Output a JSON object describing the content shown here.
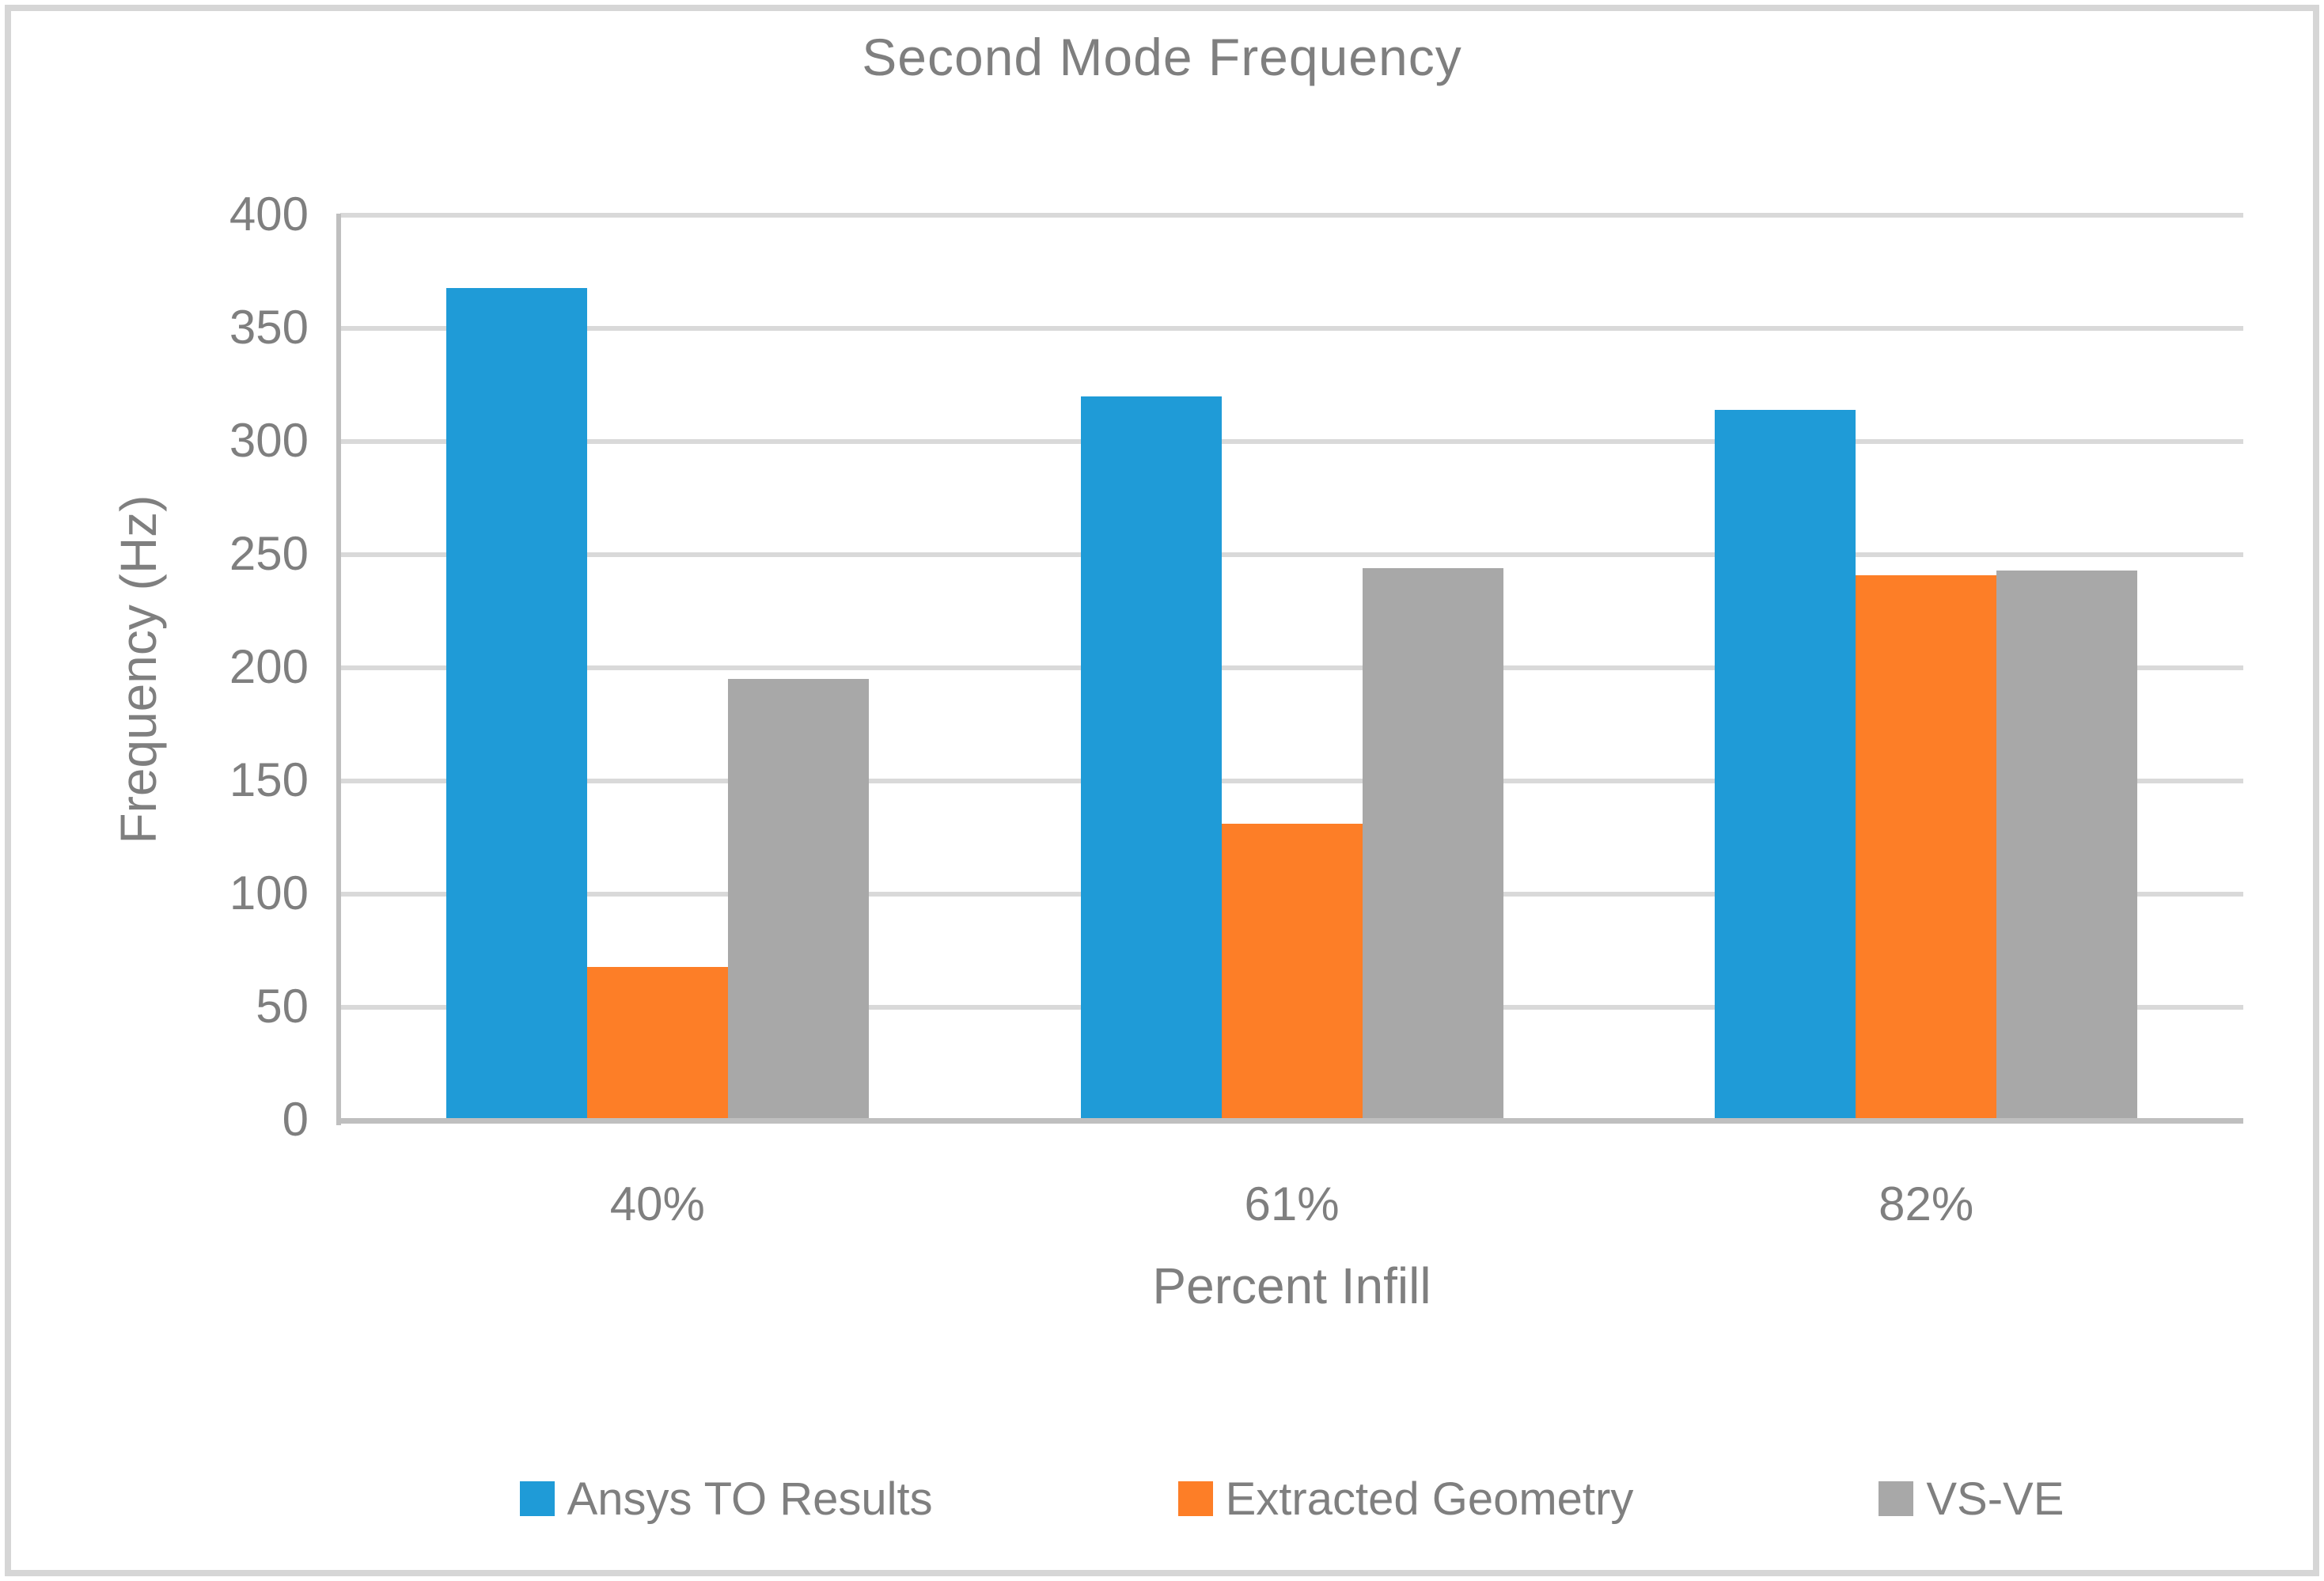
{
  "chart_data": {
    "type": "bar",
    "title": "Second Mode Frequency",
    "xlabel": "Percent Infill",
    "ylabel": "Frequency (Hz)",
    "categories": [
      "40%",
      "61%",
      "82%"
    ],
    "series": [
      {
        "name": "Ansys TO Results",
        "color": "#1f9bd7",
        "values": [
          368,
          320,
          314
        ]
      },
      {
        "name": "Extracted Geometry",
        "color": "#fd7e27",
        "values": [
          68,
          131,
          241
        ]
      },
      {
        "name": "VS-VE",
        "color": "#a8a8a8",
        "values": [
          195,
          244,
          243
        ]
      }
    ],
    "ylim": [
      0,
      400
    ],
    "ytick_step": 50,
    "yticks": [
      0,
      50,
      100,
      150,
      200,
      250,
      300,
      350,
      400
    ],
    "grid": "horizontal",
    "legend_position": "bottom",
    "colors": {
      "gridline": "#d9d9d9",
      "axis_line": "#bfbfbf",
      "text": "#7f7f7f",
      "border": "#d6d6d6",
      "background": "#ffffff"
    }
  }
}
